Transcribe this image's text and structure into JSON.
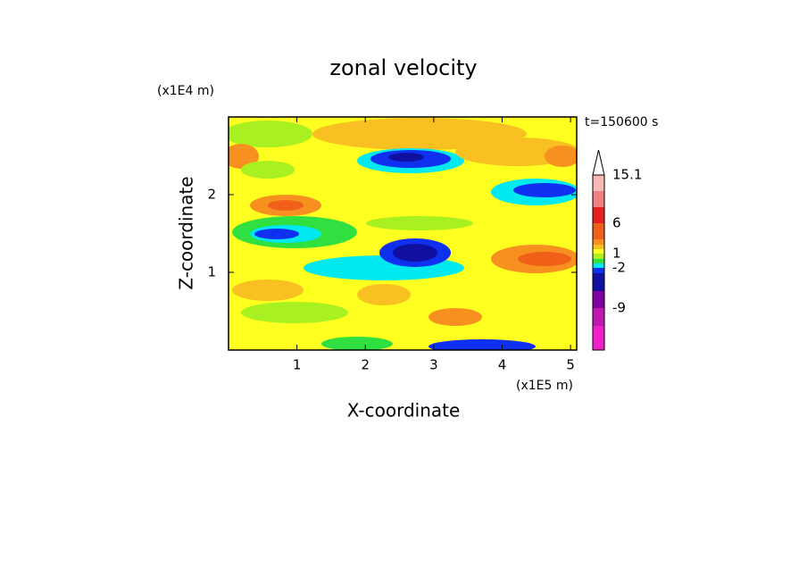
{
  "chart_data": {
    "type": "contour",
    "title": "zonal velocity",
    "x_label": "X-coordinate",
    "y_label": "Z-coordinate",
    "x_unit": "(x1E5 m)",
    "y_unit": "(x1E4 m)",
    "time_label": "t=150600 s",
    "xlim": [
      0,
      5.09
    ],
    "xticks": [
      1,
      2,
      3,
      4,
      5
    ],
    "ylim": [
      0,
      3
    ],
    "yticks": [
      1,
      2
    ],
    "colorbar": {
      "colors": [
        "#f7b8b8",
        "#f08080",
        "#e82020",
        "#f06018",
        "#f89020",
        "#f8c020",
        "#ffff20",
        "#a8f020",
        "#30e040",
        "#00e8f0",
        "#1030f0",
        "#1010a0",
        "#8000a0",
        "#c018b0",
        "#f020c8"
      ],
      "ticks": [
        15.1,
        6,
        1,
        -2,
        -9
      ]
    }
  }
}
